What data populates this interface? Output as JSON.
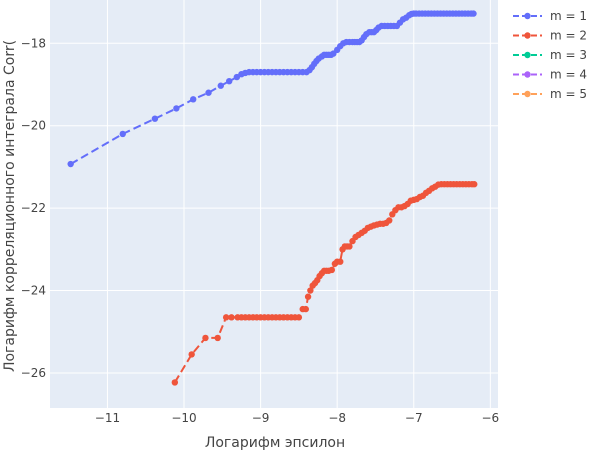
{
  "chart_data": {
    "type": "line",
    "title": "",
    "xlabel": "Логарифм эпсилон",
    "ylabel": "Логарифм корреляционного интеграла Corr(",
    "xlim": [
      -11.75,
      -5.9
    ],
    "ylim": [
      -26.85,
      -16.95
    ],
    "xticks": [
      -11,
      -10,
      -9,
      -8,
      -7,
      -6
    ],
    "yticks": [
      -18,
      -20,
      -22,
      -24,
      -26
    ],
    "xtick_labels": [
      "−11",
      "−10",
      "−9",
      "−8",
      "−7",
      "−6"
    ],
    "ytick_labels": [
      "−18",
      "−20",
      "−22",
      "−24",
      "−26"
    ],
    "grid": true,
    "legend_position": "top-right",
    "series": [
      {
        "name": "m = 1",
        "color": "#636efa",
        "x": [
          -11.48,
          -10.8,
          -10.38,
          -10.1,
          -9.88,
          -9.68,
          -9.52,
          -9.41,
          -9.31,
          -9.25,
          -9.2,
          -9.15,
          -9.1,
          -9.05,
          -9.0,
          -8.95,
          -8.9,
          -8.85,
          -8.8,
          -8.75,
          -8.7,
          -8.65,
          -8.6,
          -8.55,
          -8.5,
          -8.45,
          -8.4,
          -8.36,
          -8.33,
          -8.3,
          -8.27,
          -8.24,
          -8.2,
          -8.17,
          -8.14,
          -8.11,
          -8.08,
          -8.05,
          -8.0,
          -7.96,
          -7.92,
          -7.88,
          -7.84,
          -7.8,
          -7.77,
          -7.74,
          -7.71,
          -7.68,
          -7.65,
          -7.62,
          -7.58,
          -7.55,
          -7.52,
          -7.49,
          -7.46,
          -7.42,
          -7.38,
          -7.34,
          -7.3,
          -7.26,
          -7.22,
          -7.18,
          -7.14,
          -7.1,
          -7.06,
          -7.03,
          -7.0,
          -6.97,
          -6.93,
          -6.89,
          -6.85,
          -6.81,
          -6.77,
          -6.73,
          -6.69,
          -6.65,
          -6.61,
          -6.57,
          -6.53,
          -6.49,
          -6.45,
          -6.41,
          -6.37,
          -6.33,
          -6.29,
          -6.25,
          -6.22
        ],
        "y": [
          -20.93,
          -20.2,
          -19.83,
          -19.58,
          -19.36,
          -19.2,
          -19.03,
          -18.92,
          -18.82,
          -18.75,
          -18.72,
          -18.7,
          -18.7,
          -18.7,
          -18.7,
          -18.7,
          -18.7,
          -18.7,
          -18.7,
          -18.7,
          -18.7,
          -18.7,
          -18.7,
          -18.7,
          -18.7,
          -18.7,
          -18.7,
          -18.65,
          -18.58,
          -18.5,
          -18.43,
          -18.37,
          -18.32,
          -18.28,
          -18.28,
          -18.28,
          -18.28,
          -18.25,
          -18.16,
          -18.07,
          -18.0,
          -17.97,
          -17.97,
          -17.97,
          -17.97,
          -17.97,
          -17.97,
          -17.93,
          -17.85,
          -17.78,
          -17.73,
          -17.73,
          -17.73,
          -17.68,
          -17.62,
          -17.58,
          -17.58,
          -17.58,
          -17.58,
          -17.58,
          -17.58,
          -17.5,
          -17.42,
          -17.38,
          -17.32,
          -17.29,
          -17.28,
          -17.28,
          -17.28,
          -17.28,
          -17.28,
          -17.28,
          -17.28,
          -17.28,
          -17.28,
          -17.28,
          -17.28,
          -17.28,
          -17.28,
          -17.28,
          -17.28,
          -17.28,
          -17.28,
          -17.28,
          -17.28,
          -17.28,
          -17.28
        ]
      },
      {
        "name": "m = 2",
        "color": "#ef553b",
        "x": [
          -10.12,
          -9.9,
          -9.72,
          -9.56,
          -9.45,
          -9.38,
          -9.3,
          -9.25,
          -9.2,
          -9.15,
          -9.1,
          -9.05,
          -9.0,
          -8.95,
          -8.9,
          -8.85,
          -8.8,
          -8.75,
          -8.7,
          -8.65,
          -8.6,
          -8.55,
          -8.5,
          -8.45,
          -8.41,
          -8.38,
          -8.35,
          -8.32,
          -8.29,
          -8.26,
          -8.23,
          -8.2,
          -8.17,
          -8.14,
          -8.11,
          -8.07,
          -8.03,
          -8.0,
          -7.96,
          -7.93,
          -7.9,
          -7.87,
          -7.84,
          -7.8,
          -7.76,
          -7.72,
          -7.68,
          -7.64,
          -7.6,
          -7.56,
          -7.52,
          -7.48,
          -7.44,
          -7.4,
          -7.36,
          -7.32,
          -7.28,
          -7.24,
          -7.2,
          -7.16,
          -7.12,
          -7.08,
          -7.04,
          -7.0,
          -6.96,
          -6.92,
          -6.88,
          -6.84,
          -6.8,
          -6.76,
          -6.72,
          -6.68,
          -6.64,
          -6.6,
          -6.56,
          -6.52,
          -6.48,
          -6.44,
          -6.4,
          -6.36,
          -6.32,
          -6.28,
          -6.24,
          -6.21
        ],
        "y": [
          -26.23,
          -25.55,
          -25.15,
          -25.15,
          -24.65,
          -24.65,
          -24.65,
          -24.65,
          -24.65,
          -24.65,
          -24.65,
          -24.65,
          -24.65,
          -24.65,
          -24.65,
          -24.65,
          -24.65,
          -24.65,
          -24.65,
          -24.65,
          -24.65,
          -24.65,
          -24.65,
          -24.45,
          -24.45,
          -24.15,
          -24.0,
          -23.88,
          -23.82,
          -23.75,
          -23.65,
          -23.58,
          -23.52,
          -23.52,
          -23.52,
          -23.5,
          -23.35,
          -23.3,
          -23.3,
          -23.0,
          -22.93,
          -22.93,
          -22.93,
          -22.8,
          -22.7,
          -22.65,
          -22.6,
          -22.55,
          -22.48,
          -22.45,
          -22.42,
          -22.4,
          -22.38,
          -22.38,
          -22.36,
          -22.3,
          -22.15,
          -22.05,
          -21.98,
          -21.98,
          -21.95,
          -21.9,
          -21.82,
          -21.8,
          -21.78,
          -21.73,
          -21.7,
          -21.63,
          -21.58,
          -21.52,
          -21.48,
          -21.43,
          -21.42,
          -21.42,
          -21.42,
          -21.42,
          -21.42,
          -21.42,
          -21.42,
          -21.42,
          -21.42,
          -21.42,
          -21.42,
          -21.42
        ]
      },
      {
        "name": "m = 3",
        "color": "#00cc96",
        "x": [],
        "y": []
      },
      {
        "name": "m = 4",
        "color": "#ab63fa",
        "x": [],
        "y": []
      },
      {
        "name": "m = 5",
        "color": "#ffa15a",
        "x": [],
        "y": []
      }
    ]
  }
}
